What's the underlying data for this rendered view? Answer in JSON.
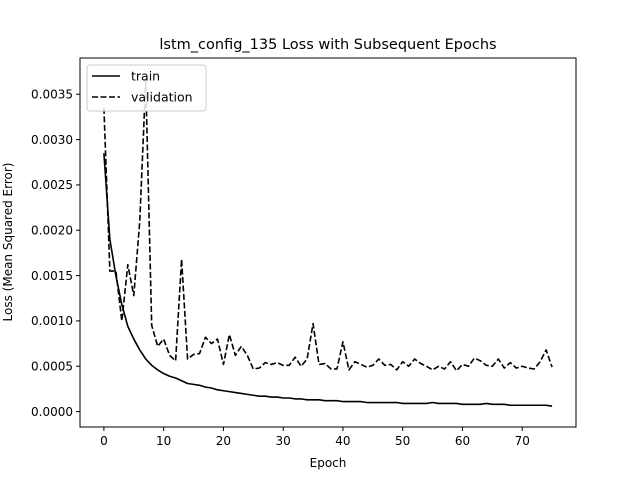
{
  "chart_data": {
    "type": "line",
    "title": "lstm_config_135 Loss with Subsequent Epochs",
    "xlabel": "Epoch",
    "ylabel": "Loss (Mean Squared Error)",
    "xlim": [
      -4,
      79
    ],
    "ylim": [
      -0.00017,
      0.0039
    ],
    "xticks": [
      0,
      10,
      20,
      30,
      40,
      50,
      60,
      70
    ],
    "yticks": [
      0.0,
      0.0005,
      0.001,
      0.0015,
      0.002,
      0.0025,
      0.003,
      0.0035
    ],
    "ytick_labels": [
      "0.0000",
      "0.0005",
      "0.0010",
      "0.0015",
      "0.0020",
      "0.0025",
      "0.0030",
      "0.0035"
    ],
    "grid": false,
    "legend": "upper-left",
    "series": [
      {
        "name": "train",
        "style": "solid",
        "color": "#000000",
        "values": [
          0.00285,
          0.0019,
          0.0015,
          0.00118,
          0.00094,
          0.0008,
          0.00068,
          0.00058,
          0.00051,
          0.00046,
          0.00042,
          0.00039,
          0.00037,
          0.00034,
          0.00031,
          0.0003,
          0.00029,
          0.00027,
          0.00026,
          0.00024,
          0.00023,
          0.00022,
          0.00021,
          0.0002,
          0.00019,
          0.00018,
          0.00017,
          0.00017,
          0.00016,
          0.00016,
          0.00015,
          0.00015,
          0.00014,
          0.00014,
          0.00013,
          0.00013,
          0.00013,
          0.00012,
          0.00012,
          0.00012,
          0.00011,
          0.00011,
          0.00011,
          0.00011,
          0.0001,
          0.0001,
          0.0001,
          0.0001,
          0.0001,
          0.0001,
          9e-05,
          9e-05,
          9e-05,
          9e-05,
          9e-05,
          0.0001,
          9e-05,
          9e-05,
          9e-05,
          9e-05,
          8e-05,
          8e-05,
          8e-05,
          8e-05,
          9e-05,
          8e-05,
          8e-05,
          8e-05,
          7e-05,
          7e-05,
          7e-05,
          7e-05,
          7e-05,
          7e-05,
          7e-05,
          6e-05
        ]
      },
      {
        "name": "validation",
        "style": "dashed",
        "color": "#000000",
        "values": [
          0.00335,
          0.00155,
          0.00155,
          0.001,
          0.00162,
          0.00128,
          0.0021,
          0.00365,
          0.00095,
          0.00072,
          0.0008,
          0.00062,
          0.00056,
          0.00168,
          0.00058,
          0.00063,
          0.00064,
          0.00082,
          0.00075,
          0.0008,
          0.00052,
          0.00085,
          0.00062,
          0.00072,
          0.00062,
          0.00047,
          0.00048,
          0.00054,
          0.00052,
          0.00054,
          0.00051,
          0.00051,
          0.0006,
          0.0005,
          0.00058,
          0.00097,
          0.00052,
          0.00053,
          0.00047,
          0.00047,
          0.00077,
          0.00046,
          0.00055,
          0.00052,
          0.00049,
          0.00051,
          0.00058,
          0.00051,
          0.00052,
          0.00046,
          0.00055,
          0.0005,
          0.00058,
          0.00053,
          0.0005,
          0.00046,
          0.0005,
          0.00047,
          0.00055,
          0.00045,
          0.00052,
          0.0005,
          0.00059,
          0.00056,
          0.00051,
          0.0005,
          0.00058,
          0.00048,
          0.00054,
          0.00048,
          0.0005,
          0.00048,
          0.00047,
          0.00055,
          0.00068,
          0.00049
        ]
      }
    ]
  }
}
